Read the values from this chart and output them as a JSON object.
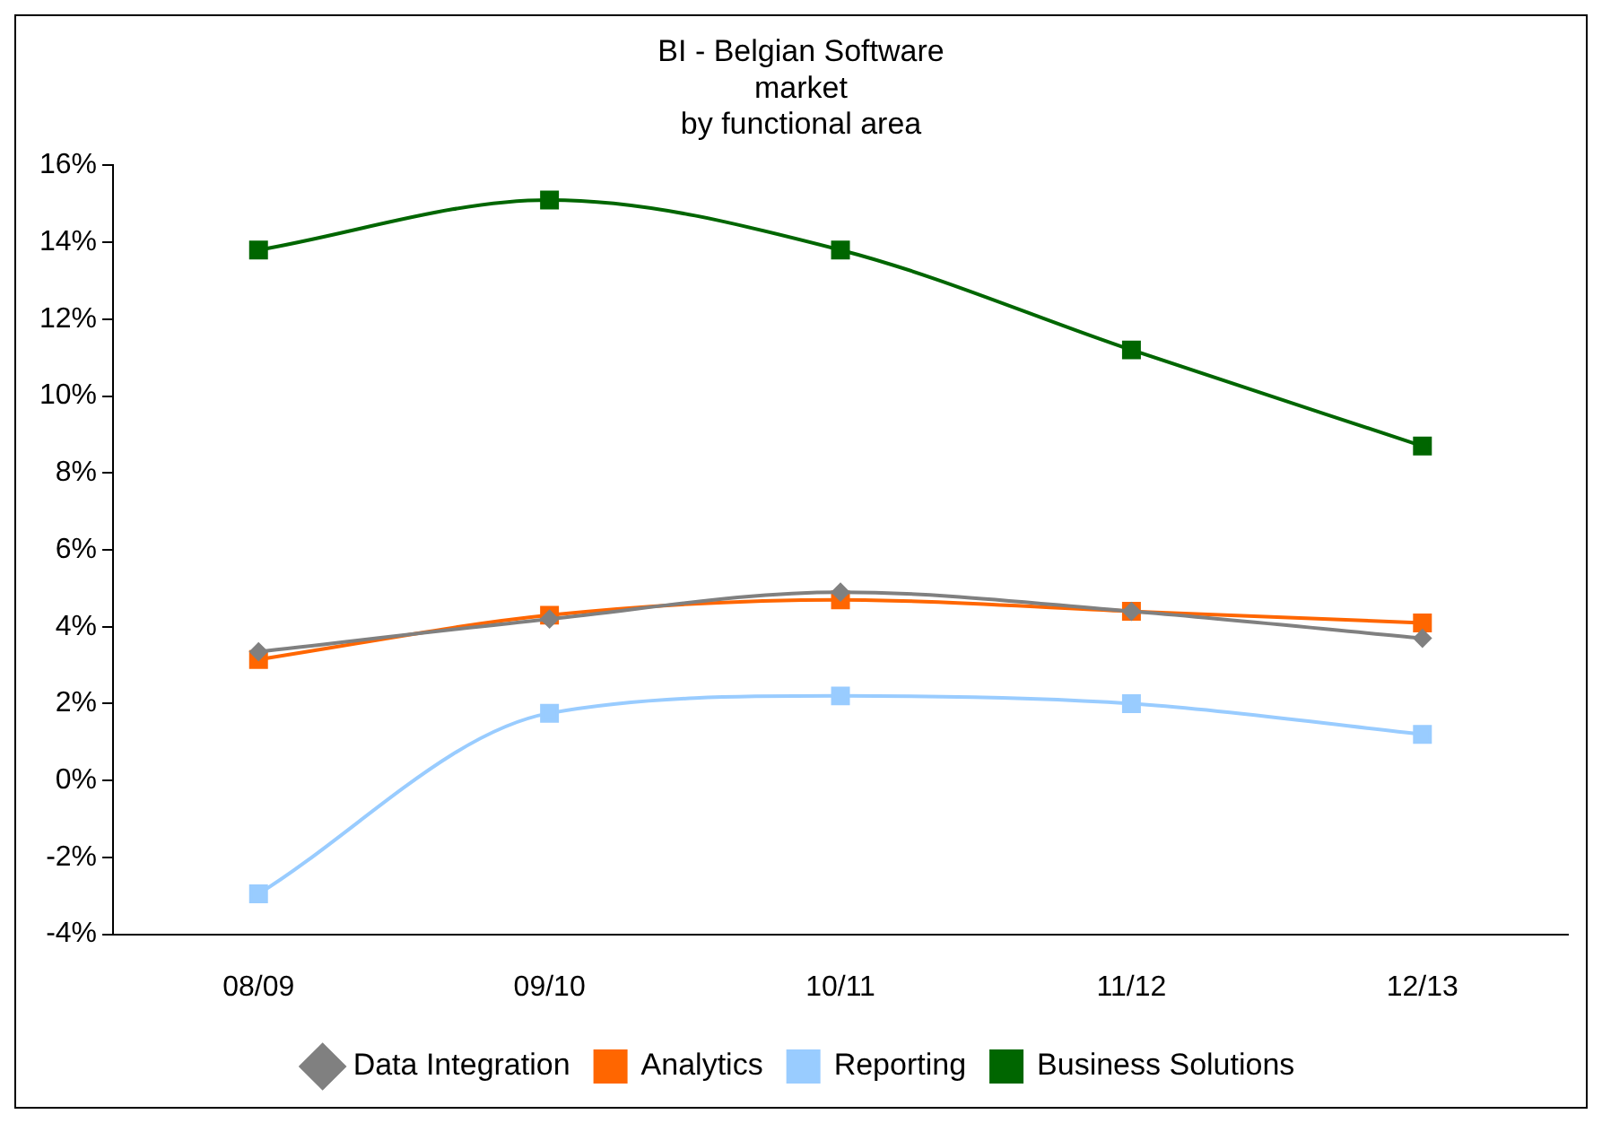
{
  "chart_data": {
    "type": "line",
    "title": [
      "BI - Belgian Software",
      "market",
      "by functional area"
    ],
    "categories": [
      "08/09",
      "09/10",
      "10/11",
      "11/12",
      "12/13"
    ],
    "series": [
      {
        "name": "Data Integration",
        "color": "#808080",
        "marker": "diamond",
        "values": [
          3.35,
          4.2,
          4.9,
          4.4,
          3.7
        ]
      },
      {
        "name": "Analytics",
        "color": "#ff6600",
        "marker": "square",
        "values": [
          3.15,
          4.3,
          4.7,
          4.4,
          4.1
        ]
      },
      {
        "name": "Reporting",
        "color": "#99ccff",
        "marker": "square",
        "values": [
          -2.95,
          1.75,
          2.2,
          2.0,
          1.2
        ]
      },
      {
        "name": "Business Solutions",
        "color": "#006600",
        "marker": "square",
        "values": [
          13.8,
          15.1,
          13.8,
          11.2,
          8.7
        ]
      }
    ],
    "ylim": [
      -4,
      16
    ],
    "yticks": [
      {
        "value": -4,
        "label": "-4%"
      },
      {
        "value": -2,
        "label": "-2%"
      },
      {
        "value": 0,
        "label": "0%"
      },
      {
        "value": 2,
        "label": "2%"
      },
      {
        "value": 4,
        "label": "4%"
      },
      {
        "value": 6,
        "label": "6%"
      },
      {
        "value": 8,
        "label": "8%"
      },
      {
        "value": 10,
        "label": "10%"
      },
      {
        "value": 12,
        "label": "12%"
      },
      {
        "value": 14,
        "label": "14%"
      },
      {
        "value": 16,
        "label": "16%"
      }
    ],
    "grid": false,
    "legend": "bottom",
    "line_style": "solid"
  }
}
